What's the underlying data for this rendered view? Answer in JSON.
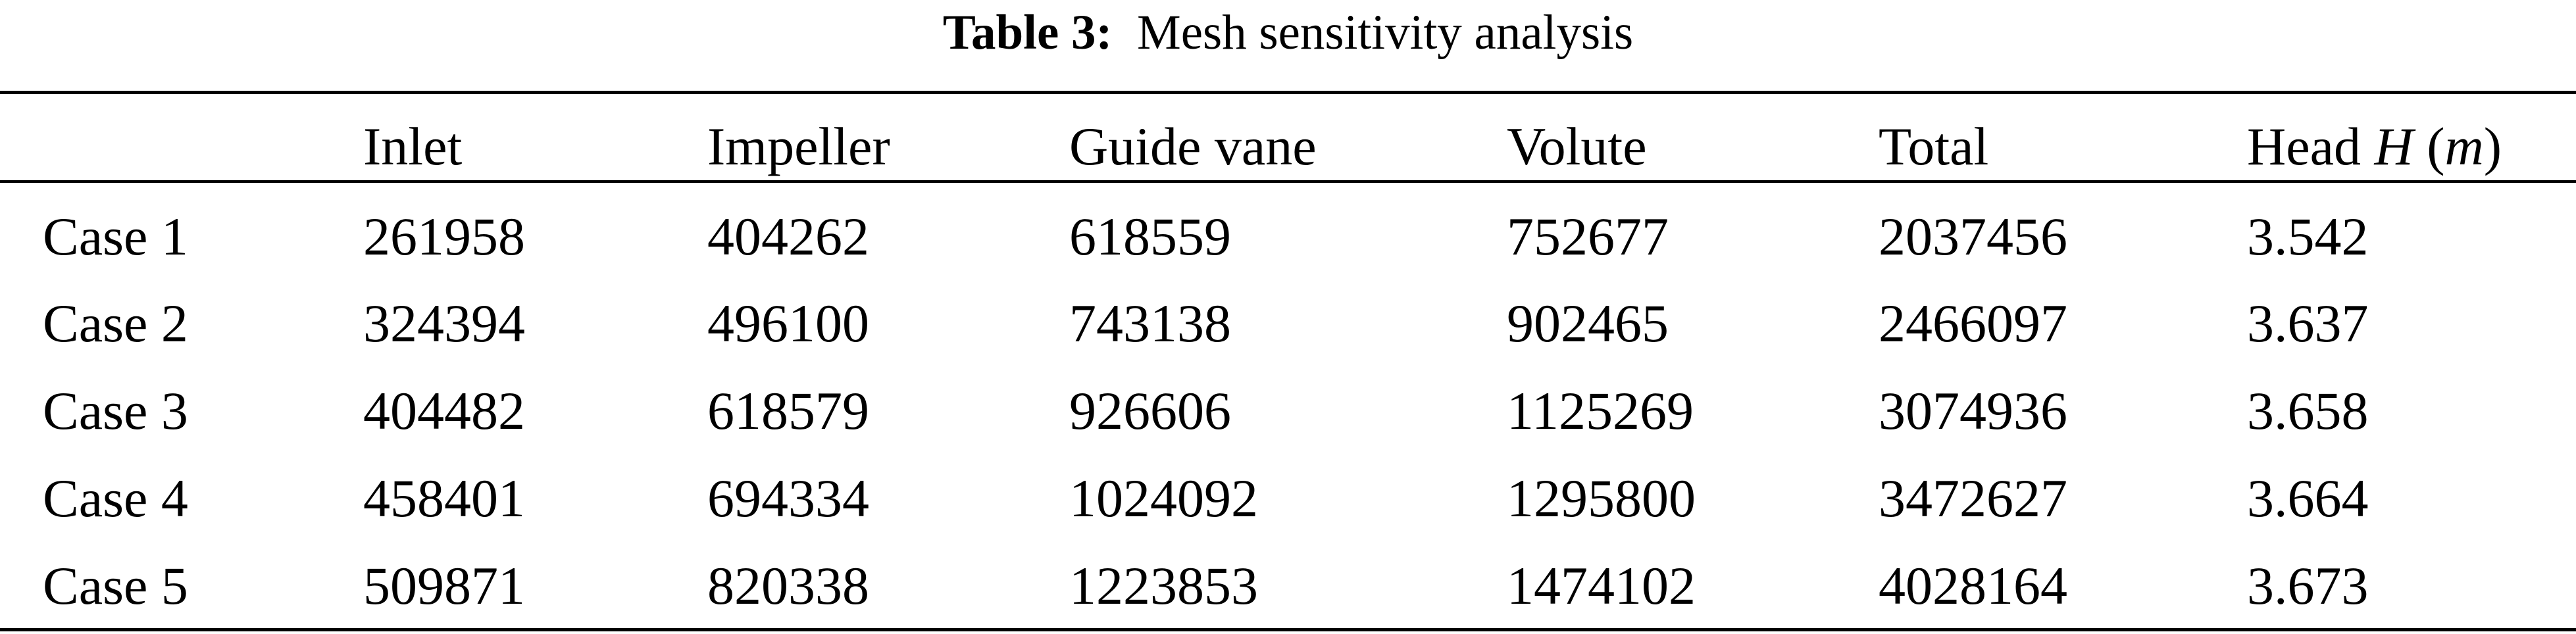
{
  "caption": {
    "label": "Table 3:",
    "title": "Mesh sensitivity analysis"
  },
  "table": {
    "columns": [
      "",
      "Inlet",
      "Impeller",
      "Guide vane",
      "Volute",
      "Total"
    ],
    "head_column": {
      "prefix": "Head",
      "symbol": "H",
      "open_paren": "(",
      "unit": "m",
      "close_paren": ")"
    },
    "rows": [
      [
        "Case 1",
        "261958",
        "404262",
        "618559",
        "752677",
        "2037456",
        "3.542"
      ],
      [
        "Case 2",
        "324394",
        "496100",
        "743138",
        "902465",
        "2466097",
        "3.637"
      ],
      [
        "Case 3",
        "404482",
        "618579",
        "926606",
        "1125269",
        "3074936",
        "3.658"
      ],
      [
        "Case 4",
        "458401",
        "694334",
        "1024092",
        "1295800",
        "3472627",
        "3.664"
      ],
      [
        "Case 5",
        "509871",
        "820338",
        "1223853",
        "1474102",
        "4028164",
        "3.673"
      ]
    ]
  }
}
